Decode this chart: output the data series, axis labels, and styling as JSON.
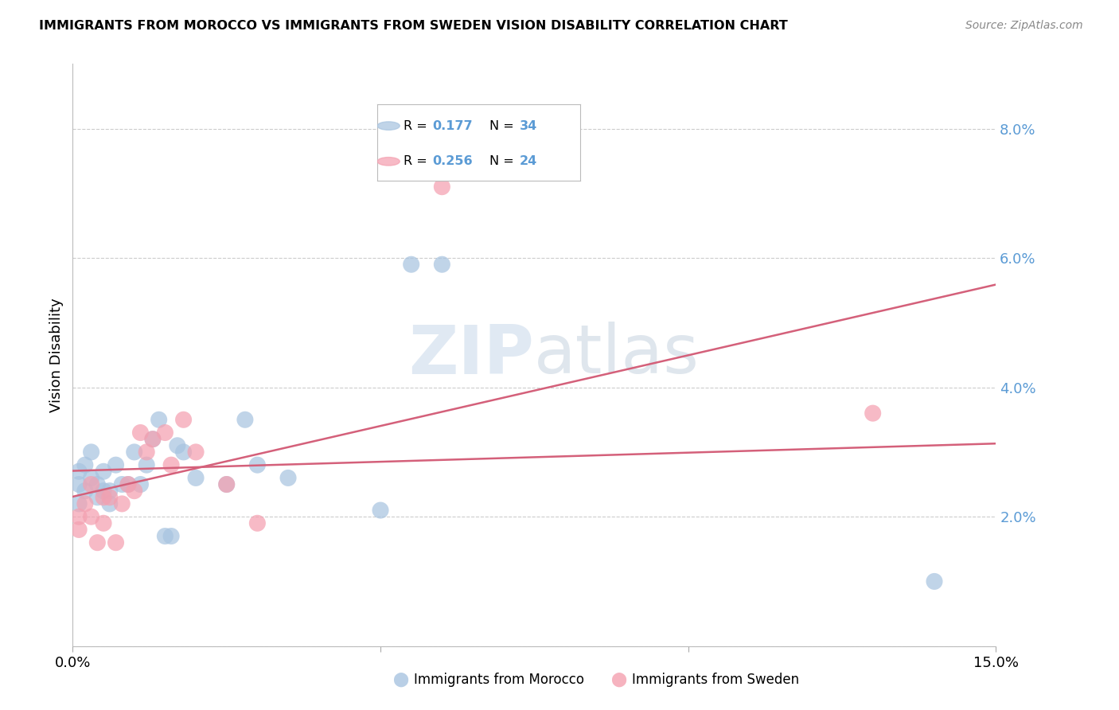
{
  "title": "IMMIGRANTS FROM MOROCCO VS IMMIGRANTS FROM SWEDEN VISION DISABILITY CORRELATION CHART",
  "source": "Source: ZipAtlas.com",
  "ylabel": "Vision Disability",
  "xlim": [
    0.0,
    0.15
  ],
  "ylim": [
    0.0,
    0.09
  ],
  "yticks": [
    0.0,
    0.02,
    0.04,
    0.06,
    0.08
  ],
  "ytick_labels": [
    "",
    "2.0%",
    "4.0%",
    "6.0%",
    "8.0%"
  ],
  "xtick_positions": [
    0.0,
    0.05,
    0.1,
    0.15
  ],
  "xtick_labels": [
    "0.0%",
    "",
    "",
    "15.0%"
  ],
  "morocco_color": "#a8c4e0",
  "sweden_color": "#f4a0b0",
  "line_color": "#d4607a",
  "label_color": "#5b9bd5",
  "watermark_color": "#c8d8ea",
  "morocco_label": "Immigrants from Morocco",
  "sweden_label": "Immigrants from Sweden",
  "legend_r1": "0.177",
  "legend_n1": "34",
  "legend_r2": "0.256",
  "legend_n2": "24",
  "morocco_x": [
    0.001,
    0.001,
    0.001,
    0.002,
    0.002,
    0.003,
    0.003,
    0.004,
    0.004,
    0.005,
    0.005,
    0.006,
    0.006,
    0.007,
    0.008,
    0.009,
    0.01,
    0.011,
    0.012,
    0.013,
    0.014,
    0.015,
    0.016,
    0.017,
    0.018,
    0.02,
    0.025,
    0.028,
    0.03,
    0.035,
    0.05,
    0.055,
    0.06,
    0.14
  ],
  "morocco_y": [
    0.025,
    0.027,
    0.022,
    0.024,
    0.028,
    0.026,
    0.03,
    0.025,
    0.023,
    0.027,
    0.024,
    0.022,
    0.024,
    0.028,
    0.025,
    0.025,
    0.03,
    0.025,
    0.028,
    0.032,
    0.035,
    0.017,
    0.017,
    0.031,
    0.03,
    0.026,
    0.025,
    0.035,
    0.028,
    0.026,
    0.021,
    0.059,
    0.059,
    0.01
  ],
  "sweden_x": [
    0.001,
    0.001,
    0.002,
    0.003,
    0.003,
    0.004,
    0.005,
    0.005,
    0.006,
    0.007,
    0.008,
    0.009,
    0.01,
    0.011,
    0.012,
    0.013,
    0.015,
    0.016,
    0.018,
    0.02,
    0.025,
    0.03,
    0.06,
    0.13
  ],
  "sweden_y": [
    0.02,
    0.018,
    0.022,
    0.02,
    0.025,
    0.016,
    0.019,
    0.023,
    0.023,
    0.016,
    0.022,
    0.025,
    0.024,
    0.033,
    0.03,
    0.032,
    0.033,
    0.028,
    0.035,
    0.03,
    0.025,
    0.019,
    0.071,
    0.036
  ]
}
